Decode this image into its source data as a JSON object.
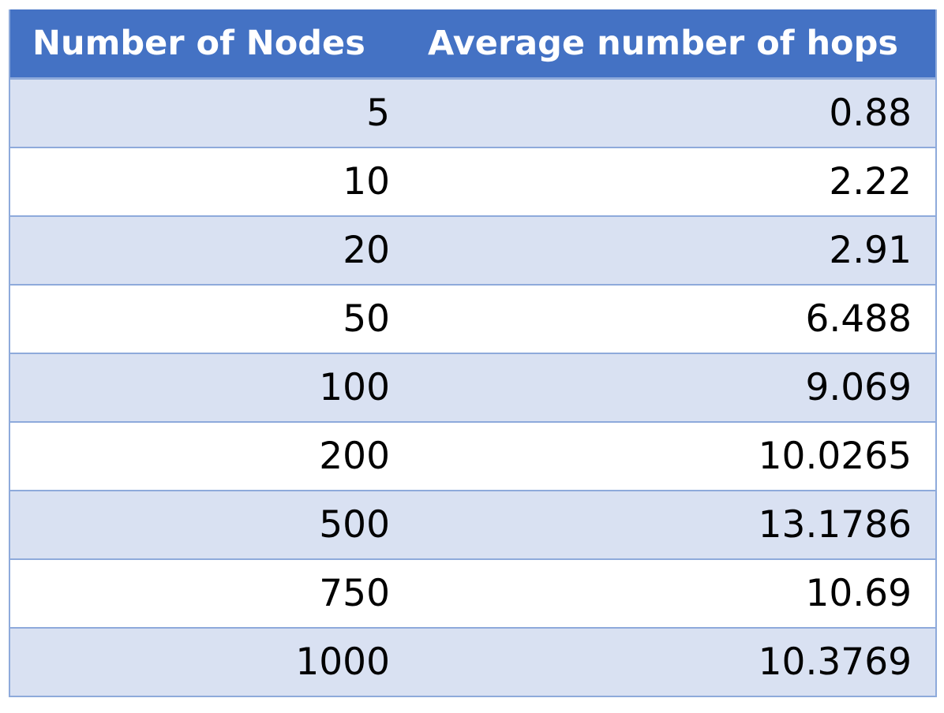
{
  "chart_data": {
    "type": "table",
    "columns": [
      "Number of Nodes",
      "Average number of hops"
    ],
    "rows": [
      [
        "5",
        "0.88"
      ],
      [
        "10",
        "2.22"
      ],
      [
        "20",
        "2.91"
      ],
      [
        "50",
        "6.488"
      ],
      [
        "100",
        "9.069"
      ],
      [
        "200",
        "10.0265"
      ],
      [
        "500",
        "13.1786"
      ],
      [
        "750",
        "10.69"
      ],
      [
        "1000",
        "10.3769"
      ]
    ],
    "colors": {
      "header_bg": "#4472c4",
      "header_text": "#ffffff",
      "band_row": "#d9e1f2",
      "plain_row": "#ffffff",
      "border": "#8eaadb"
    }
  }
}
